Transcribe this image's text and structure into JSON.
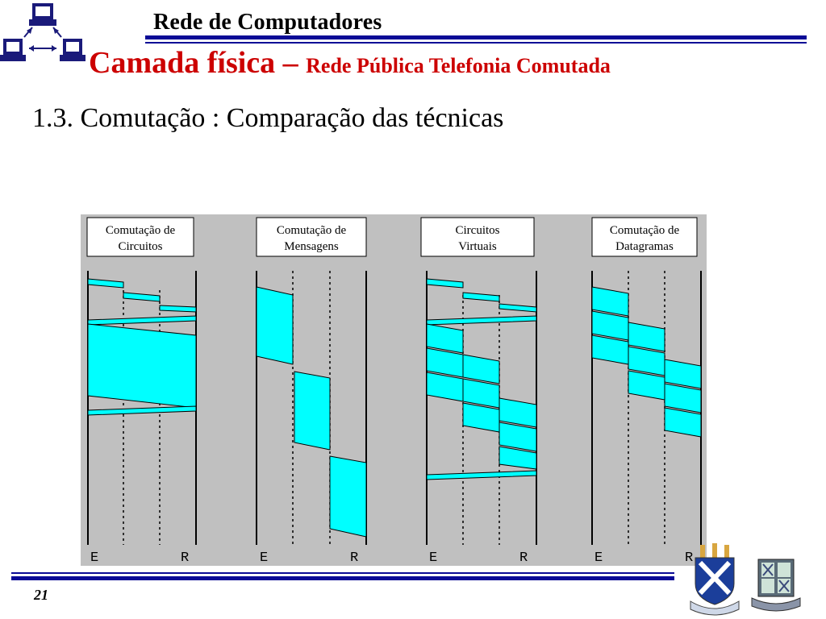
{
  "header": {
    "course": "Rede de Computadores",
    "title_main": "Camada física – ",
    "title_sub": "Rede Pública Telefonia Comutada",
    "subtitle": "1.3. Comutação : Comparação das técnicas"
  },
  "diagram": {
    "panels": [
      {
        "label_line1": "Comutação de",
        "label_line2": "Circuitos",
        "left_label": "E",
        "right_label": "R"
      },
      {
        "label_line1": "Comutação de",
        "label_line2": "Mensagens",
        "left_label": "E",
        "right_label": "R"
      },
      {
        "label_line1": "Circuitos",
        "label_line2": "Virtuais",
        "left_label": "E",
        "right_label": "R"
      },
      {
        "label_line1": "Comutação de",
        "label_line2": "Datagramas",
        "left_label": "E",
        "right_label": "R"
      }
    ]
  },
  "footer": {
    "page": "21"
  },
  "colors": {
    "accent": "#cc0000",
    "rule": "#0a0a96",
    "packet": "#00ffff",
    "diagram_bg": "#c0c0c0"
  },
  "logos": [
    "network-computers-icon",
    "university-crest-icon",
    "faculty-crest-icon"
  ]
}
